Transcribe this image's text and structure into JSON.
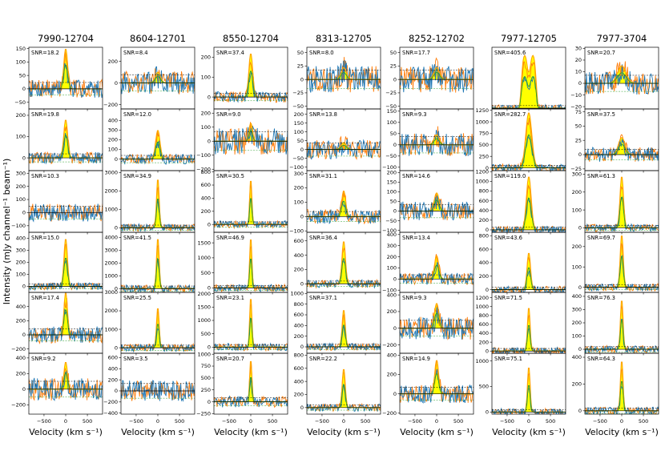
{
  "chart_data": {
    "type": "line",
    "title": "",
    "xlabel": "Velocity (km s⁻¹)",
    "ylabel": "Intensity (mJy channel⁻¹ beam⁻¹)",
    "xlim": [
      -850,
      850
    ],
    "xticks": [
      -500,
      0,
      500
    ],
    "legend": "none",
    "series_colors": {
      "fill": "#ffff00",
      "model": "#ffa500",
      "spectrum_a": "#1f77b4",
      "spectrum_b": "#ff7f0e",
      "fit": "#2ca02c",
      "zero": "#000000"
    },
    "columns": [
      {
        "title": "7990-12704",
        "panels": [
          {
            "snr": "SNR=18.2",
            "ylim": [
              -75,
              155
            ],
            "yticks": [
              -50,
              0,
              50,
              100,
              150
            ],
            "peak": 150,
            "width": 45
          },
          {
            "snr": "SNR=19.8",
            "ylim": [
              -60,
              230
            ],
            "yticks": [
              0,
              100,
              200
            ],
            "peak": 180,
            "width": 45
          },
          {
            "snr": "SNR=10.3",
            "ylim": [
              -150,
              320
            ],
            "yticks": [
              -100,
              0,
              100,
              200,
              300
            ],
            "peak": 0,
            "width": 45
          },
          {
            "snr": "SNR=15.0",
            "ylim": [
              -50,
              450
            ],
            "yticks": [
              0,
              100,
              200,
              300,
              400
            ],
            "peak": 400,
            "width": 40
          },
          {
            "snr": "SNR=17.4",
            "ylim": [
              -260,
              600
            ],
            "yticks": [
              -200,
              0,
              200,
              400
            ],
            "peak": 600,
            "width": 40
          },
          {
            "snr": "SNR=9.2",
            "ylim": [
              -320,
              460
            ],
            "yticks": [
              -200,
              0,
              200,
              400
            ],
            "peak": 350,
            "width": 40
          }
        ]
      },
      {
        "title": "8604-12701",
        "panels": [
          {
            "snr": "SNR=8.4",
            "ylim": [
              -240,
              330
            ],
            "yticks": [
              -200,
              0,
              200
            ],
            "peak": 100,
            "width": 60
          },
          {
            "snr": "SNR=12.0",
            "ylim": [
              -120,
              520
            ],
            "yticks": [
              0,
              100,
              200,
              300,
              400
            ],
            "peak": 300,
            "width": 50
          },
          {
            "snr": "SNR=34.9",
            "ylim": [
              -250,
              3100
            ],
            "yticks": [
              0,
              1000,
              2000,
              3000
            ],
            "peak": 2700,
            "width": 30
          },
          {
            "snr": "SNR=41.5",
            "ylim": [
              -300,
              4400
            ],
            "yticks": [
              0,
              1000,
              2000,
              3000,
              4000
            ],
            "peak": 4000,
            "width": 30
          },
          {
            "snr": "SNR=25.5",
            "ylim": [
              -300,
              3000
            ],
            "yticks": [
              0,
              1000,
              2000,
              3000
            ],
            "peak": 2200,
            "width": 30
          },
          {
            "snr": "SNR=3.5",
            "ylim": [
              -420,
              680
            ],
            "yticks": [
              -400,
              -200,
              0,
              200,
              400,
              600
            ],
            "peak": 0,
            "width": 40
          }
        ]
      },
      {
        "title": "8550-12704",
        "panels": [
          {
            "snr": "SNR=37.4",
            "ylim": [
              -60,
              250
            ],
            "yticks": [
              0,
              100,
              200
            ],
            "peak": 220,
            "width": 45
          },
          {
            "snr": "SNR=9.0",
            "ylim": [
              -210,
              230
            ],
            "yticks": [
              -200,
              -100,
              0,
              100,
              200
            ],
            "peak": 130,
            "width": 40
          },
          {
            "snr": "SNR=30.5",
            "ylim": [
              -120,
              820
            ],
            "yticks": [
              0,
              200,
              400,
              600,
              800
            ],
            "peak": 700,
            "width": 25
          },
          {
            "snr": "SNR=46.9",
            "ylim": [
              -150,
              1850
            ],
            "yticks": [
              0,
              500,
              1000,
              1500
            ],
            "peak": 1700,
            "width": 25
          },
          {
            "snr": "SNR=23.1",
            "ylim": [
              -230,
              2050
            ],
            "yticks": [
              0,
              500,
              1000,
              1500,
              2000
            ],
            "peak": 1900,
            "width": 25
          },
          {
            "snr": "SNR=20.7",
            "ylim": [
              -260,
              1020
            ],
            "yticks": [
              -250,
              0,
              250,
              500,
              750,
              1000
            ],
            "peak": 900,
            "width": 25
          }
        ]
      },
      {
        "title": "8313-12705",
        "panels": [
          {
            "snr": "SNR=8.0",
            "ylim": [
              -55,
              60
            ],
            "yticks": [
              -50,
              -25,
              0,
              25,
              50
            ],
            "peak": 22,
            "width": 60
          },
          {
            "snr": "SNR=13.8",
            "ylim": [
              -120,
              230
            ],
            "yticks": [
              -100,
              -50,
              0,
              50,
              100,
              150,
              200
            ],
            "peak": 40,
            "width": 60
          },
          {
            "snr": "SNR=31.1",
            "ylim": [
              -110,
              320
            ],
            "yticks": [
              -100,
              0,
              100,
              200,
              300
            ],
            "peak": 180,
            "width": 45
          },
          {
            "snr": "SNR=36.4",
            "ylim": [
              -120,
              720
            ],
            "yticks": [
              0,
              200,
              400,
              600
            ],
            "peak": 600,
            "width": 40
          },
          {
            "snr": "SNR=37.1",
            "ylim": [
              -120,
              1020
            ],
            "yticks": [
              0,
              200,
              400,
              600,
              800,
              1000
            ],
            "peak": 700,
            "width": 35
          },
          {
            "snr": "SNR=22.2",
            "ylim": [
              -100,
              830
            ],
            "yticks": [
              0,
              200,
              400,
              600,
              800
            ],
            "peak": 600,
            "width": 35
          }
        ]
      },
      {
        "title": "8252-12702",
        "panels": [
          {
            "snr": "SNR=17.7",
            "ylim": [
              -55,
              60
            ],
            "yticks": [
              -50,
              -25,
              0,
              25,
              50
            ],
            "peak": 22,
            "width": 65
          },
          {
            "snr": "SNR=9.3",
            "ylim": [
              -115,
              160
            ],
            "yticks": [
              -100,
              -50,
              0,
              50,
              100,
              150
            ],
            "peak": 45,
            "width": 60
          },
          {
            "snr": "SNR=14.6",
            "ylim": [
              -110,
              210
            ],
            "yticks": [
              -100,
              -50,
              0,
              50,
              100,
              150,
              200
            ],
            "peak": 95,
            "width": 55
          },
          {
            "snr": "SNR=13.4",
            "ylim": [
              -120,
              420
            ],
            "yticks": [
              -100,
              0,
              100,
              200,
              300,
              400
            ],
            "peak": 210,
            "width": 50
          },
          {
            "snr": "SNR=9.3",
            "ylim": [
              -300,
              430
            ],
            "yticks": [
              -200,
              0,
              200,
              400
            ],
            "peak": 300,
            "width": 50
          },
          {
            "snr": "SNR=14.9",
            "ylim": [
              -210,
              420
            ],
            "yticks": [
              -200,
              0,
              200,
              400
            ],
            "peak": 350,
            "width": 45
          }
        ]
      },
      {
        "title": "7977-12705",
        "panels": [
          {
            "snr": "SNR=405.6",
            "ylim": [
              -50,
              4200
            ],
            "yticks": [],
            "peak": 3800,
            "width": 180,
            "flat": 0.35
          },
          {
            "snr": "SNR=282.7",
            "ylim": [
              -60,
              1280
            ],
            "yticks": [
              0,
              250,
              500,
              750,
              1000,
              1250
            ],
            "peak": 1200,
            "width": 70
          },
          {
            "snr": "SNR=119.0",
            "ylim": [
              -50,
              1220
            ],
            "yticks": [
              0,
              200,
              400,
              600,
              800,
              1000,
              1200
            ],
            "peak": 1100,
            "width": 55
          },
          {
            "snr": "SNR=43.6",
            "ylim": [
              -40,
              850
            ],
            "yticks": [
              0,
              200,
              400,
              600,
              800
            ],
            "peak": 550,
            "width": 40
          },
          {
            "snr": "SNR=71.5",
            "ylim": [
              -50,
              1320
            ],
            "yticks": [
              0,
              200,
              400,
              600,
              800,
              1000,
              1200
            ],
            "peak": 1000,
            "width": 30
          },
          {
            "snr": "SNR=75.1",
            "ylim": [
              -40,
              1150
            ],
            "yticks": [
              0,
              500,
              1000
            ],
            "peak": 900,
            "width": 30
          }
        ]
      },
      {
        "title": "7977-3704",
        "panels": [
          {
            "snr": "SNR=20.7",
            "ylim": [
              -22,
              31
            ],
            "yticks": [
              -20,
              -10,
              0,
              10,
              20,
              30
            ],
            "peak": 15,
            "width": 100
          },
          {
            "snr": "SNR=37.5",
            "ylim": [
              -28,
              80
            ],
            "yticks": [
              -25,
              0,
              25,
              50,
              75
            ],
            "peak": 30,
            "width": 75
          },
          {
            "snr": "SNR=61.3",
            "ylim": [
              -25,
              320
            ],
            "yticks": [
              0,
              100,
              200,
              300
            ],
            "peak": 290,
            "width": 40
          },
          {
            "snr": "SNR=69.7",
            "ylim": [
              -25,
              270
            ],
            "yticks": [
              0,
              100,
              200
            ],
            "peak": 260,
            "width": 35
          },
          {
            "snr": "SNR=76.3",
            "ylim": [
              -30,
              430
            ],
            "yticks": [
              0,
              100,
              200,
              300,
              400
            ],
            "peak": 380,
            "width": 30
          },
          {
            "snr": "SNR=64.3",
            "ylim": [
              -25,
              430
            ],
            "yticks": [
              0,
              200,
              400
            ],
            "peak": 380,
            "width": 30
          }
        ]
      }
    ]
  }
}
